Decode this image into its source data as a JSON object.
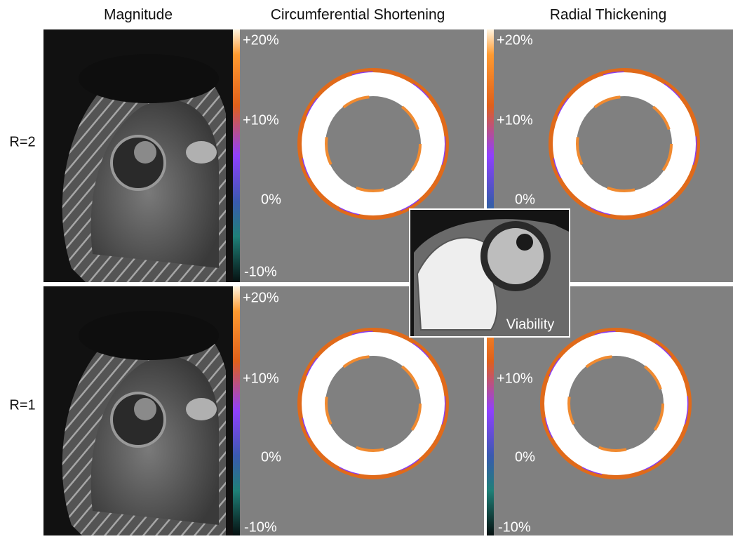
{
  "column_headers": [
    "Magnitude",
    "Circumferential Shortening",
    "Radial Thickening"
  ],
  "row_labels": [
    "R=2",
    "R=1"
  ],
  "panels": [
    {
      "labels": [
        "+20%",
        "+10%",
        "0%",
        "-10%"
      ]
    },
    {
      "labels": [
        "+20%",
        "+10%",
        "0%"
      ]
    },
    {
      "labels": [
        "+20%",
        "+10%",
        "0%",
        "-10%"
      ]
    },
    {
      "labels": [
        "+10%",
        "0%",
        "-10%"
      ]
    }
  ],
  "inset_label": "Viability"
}
